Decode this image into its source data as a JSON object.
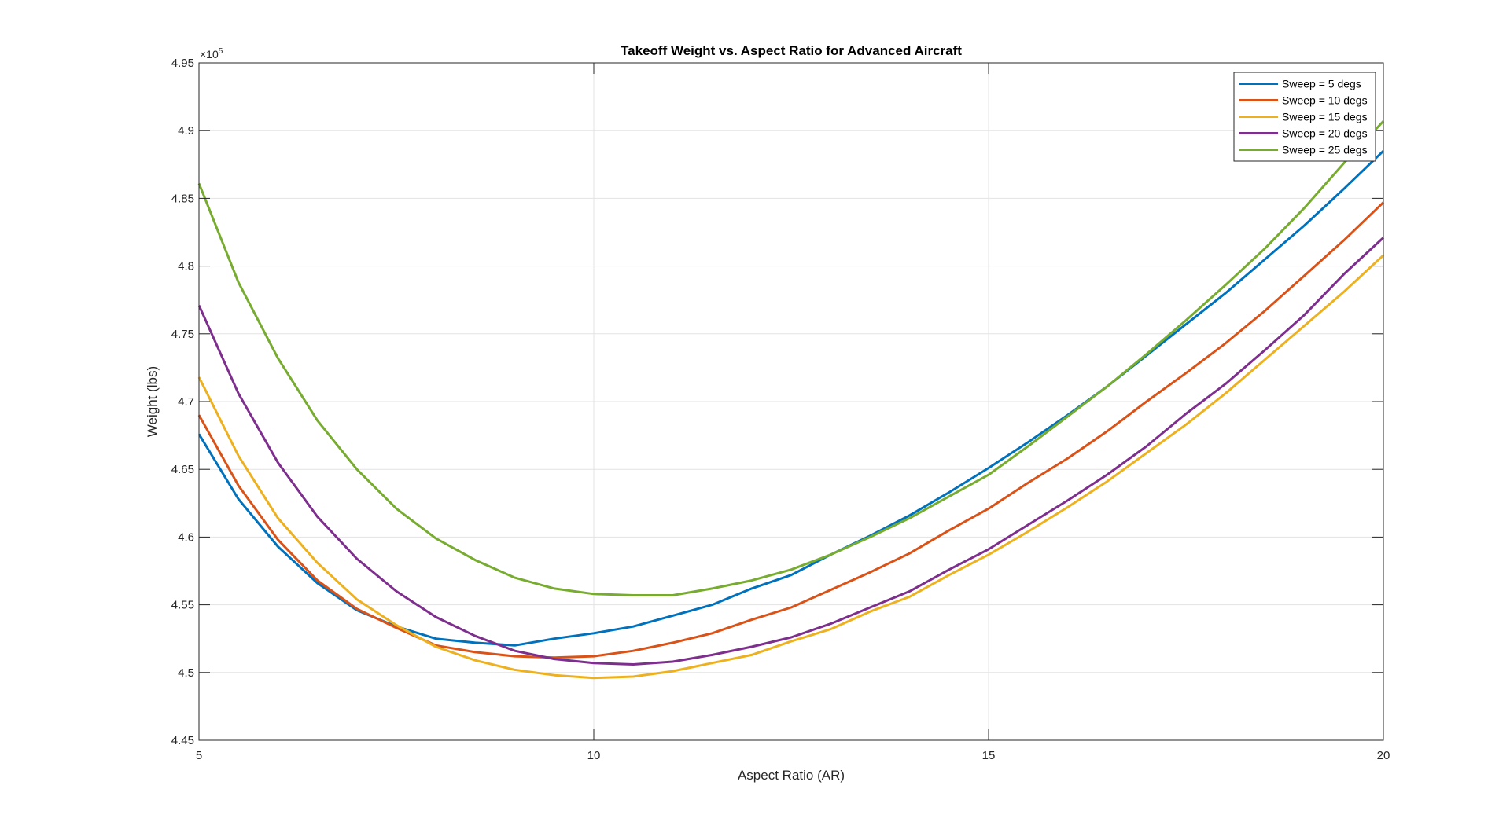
{
  "chart_data": {
    "type": "line",
    "title": "Takeoff Weight vs. Aspect Ratio for Advanced Aircraft",
    "xlabel": "Aspect Ratio (AR)",
    "ylabel": "Weight (lbs)",
    "y_exponent_label": "×10",
    "y_exponent_power": "5",
    "xlim": [
      5,
      20
    ],
    "ylim": [
      4.45,
      4.95
    ],
    "x_ticks": [
      5,
      10,
      15,
      20
    ],
    "x_tick_labels": [
      "5",
      "10",
      "15",
      "20"
    ],
    "y_ticks": [
      4.45,
      4.5,
      4.55,
      4.6,
      4.65,
      4.7,
      4.75,
      4.8,
      4.85,
      4.9,
      4.95
    ],
    "y_tick_labels": [
      "4.45",
      "4.5",
      "4.55",
      "4.6",
      "4.65",
      "4.7",
      "4.75",
      "4.8",
      "4.85",
      "4.9",
      "4.95"
    ],
    "grid": true,
    "legend_position": "top-right",
    "x": [
      5,
      5.5,
      6,
      6.5,
      7,
      7.5,
      8,
      8.5,
      9,
      9.5,
      10,
      10.5,
      11,
      11.5,
      12,
      12.5,
      13,
      13.5,
      14,
      14.5,
      15,
      15.5,
      16,
      16.5,
      17,
      17.5,
      18,
      18.5,
      19,
      19.5,
      20
    ],
    "series": [
      {
        "name": "Sweep = 5 degs",
        "color": "#0072BD",
        "values": [
          4.676,
          4.628,
          4.593,
          4.566,
          4.546,
          4.534,
          4.525,
          4.522,
          4.52,
          4.525,
          4.529,
          4.534,
          4.542,
          4.55,
          4.562,
          4.572,
          4.587,
          4.601,
          4.616,
          4.633,
          4.651,
          4.67,
          4.69,
          4.711,
          4.734,
          4.757,
          4.78,
          4.805,
          4.83,
          4.857,
          4.885
        ]
      },
      {
        "name": "Sweep = 10 degs",
        "color": "#D95319",
        "values": [
          4.69,
          4.638,
          4.598,
          4.568,
          4.547,
          4.533,
          4.52,
          4.515,
          4.512,
          4.511,
          4.512,
          4.516,
          4.522,
          4.529,
          4.539,
          4.548,
          4.561,
          4.574,
          4.588,
          4.605,
          4.621,
          4.64,
          4.658,
          4.678,
          4.7,
          4.721,
          4.743,
          4.767,
          4.793,
          4.819,
          4.847
        ]
      },
      {
        "name": "Sweep = 15 degs",
        "color": "#EDB120",
        "values": [
          4.718,
          4.66,
          4.614,
          4.581,
          4.554,
          4.535,
          4.519,
          4.509,
          4.502,
          4.498,
          4.496,
          4.497,
          4.501,
          4.507,
          4.513,
          4.523,
          4.532,
          4.545,
          4.556,
          4.572,
          4.587,
          4.604,
          4.622,
          4.641,
          4.662,
          4.683,
          4.706,
          4.731,
          4.756,
          4.781,
          4.808
        ]
      },
      {
        "name": "Sweep = 20 degs",
        "color": "#7E2F8E",
        "values": [
          4.771,
          4.706,
          4.655,
          4.615,
          4.584,
          4.56,
          4.541,
          4.527,
          4.516,
          4.51,
          4.507,
          4.506,
          4.508,
          4.513,
          4.519,
          4.526,
          4.536,
          4.548,
          4.56,
          4.576,
          4.591,
          4.609,
          4.627,
          4.646,
          4.667,
          4.691,
          4.713,
          4.738,
          4.764,
          4.794,
          4.821
        ]
      },
      {
        "name": "Sweep = 25 degs",
        "color": "#77AC30",
        "values": [
          4.861,
          4.788,
          4.732,
          4.686,
          4.65,
          4.621,
          4.599,
          4.583,
          4.57,
          4.562,
          4.558,
          4.557,
          4.557,
          4.562,
          4.568,
          4.576,
          4.587,
          4.6,
          4.614,
          4.63,
          4.646,
          4.667,
          4.689,
          4.711,
          4.735,
          4.76,
          4.786,
          4.813,
          4.843,
          4.876,
          4.907
        ]
      }
    ]
  }
}
